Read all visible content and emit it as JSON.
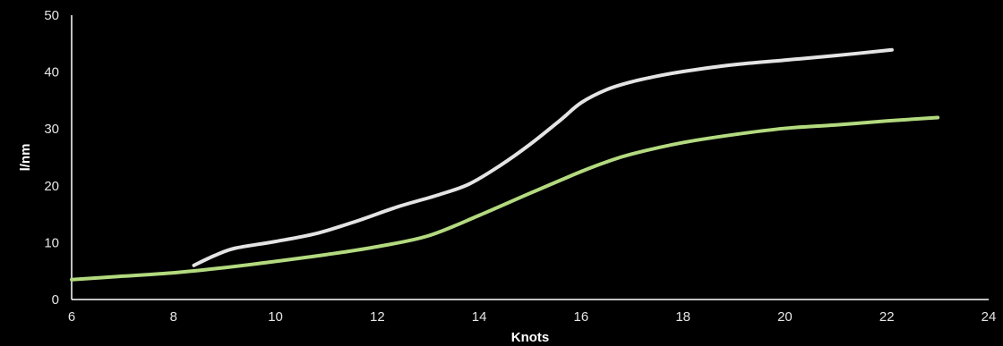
{
  "chart_data": {
    "type": "line",
    "title": "",
    "xlabel": "Knots",
    "ylabel": "l/nm",
    "xlim": [
      6,
      24
    ],
    "ylim": [
      0,
      50
    ],
    "x_ticks": [
      6,
      8,
      10,
      12,
      14,
      16,
      18,
      20,
      22,
      24
    ],
    "y_ticks": [
      0,
      10,
      20,
      30,
      40,
      50
    ],
    "grid": false,
    "legend": "none",
    "colors": {
      "background": "#000000",
      "axis": "#ffffff",
      "text": "#e6e6e6"
    },
    "series": [
      {
        "color": "#e4e4e4",
        "x": [
          8.4,
          8.8,
          9.2,
          10.0,
          10.8,
          11.6,
          12.4,
          13.2,
          13.8,
          14.4,
          15.0,
          15.6,
          16.0,
          16.5,
          17.0,
          17.5,
          18.0,
          19.0,
          20.0,
          21.0,
          22.1
        ],
        "y": [
          6,
          7.7,
          9.0,
          10.2,
          11.6,
          13.8,
          16.3,
          18.4,
          20.3,
          23.5,
          27.3,
          31.6,
          34.6,
          36.9,
          38.3,
          39.3,
          40.1,
          41.3,
          42.1,
          42.9,
          43.9
        ]
      },
      {
        "color": "#b3da7f",
        "x": [
          6.0,
          7.0,
          8.0,
          9.0,
          10.0,
          11.0,
          12.0,
          13.0,
          14.0,
          15.0,
          16.0,
          16.5,
          17.0,
          18.0,
          19.0,
          20.0,
          21.0,
          22.0,
          23.0
        ],
        "y": [
          3.5,
          4.1,
          4.7,
          5.6,
          6.7,
          7.9,
          9.3,
          11.2,
          14.8,
          18.7,
          22.5,
          24.2,
          25.6,
          27.6,
          29.0,
          30.1,
          30.7,
          31.4,
          32.0
        ]
      }
    ]
  }
}
